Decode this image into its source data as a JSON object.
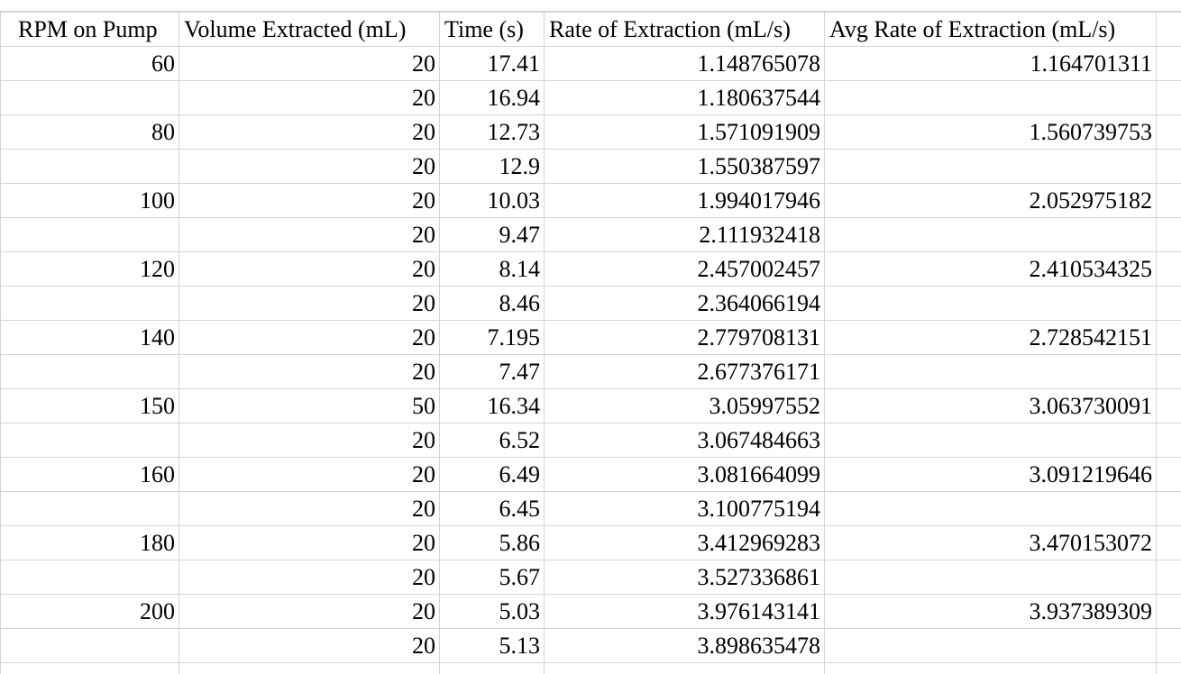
{
  "sheet": {
    "headers": [
      "RPM on Pump",
      "Volume Extracted (mL)",
      "Time (s)",
      "Rate of Extraction (mL/s)",
      "Avg Rate of Extraction (mL/s)",
      ""
    ],
    "rows": [
      [
        "60",
        "20",
        "17.41",
        "1.148765078",
        "1.164701311",
        ""
      ],
      [
        "",
        "20",
        "16.94",
        "1.180637544",
        "",
        ""
      ],
      [
        "80",
        "20",
        "12.73",
        "1.571091909",
        "1.560739753",
        ""
      ],
      [
        "",
        "20",
        "12.9",
        "1.550387597",
        "",
        ""
      ],
      [
        "100",
        "20",
        "10.03",
        "1.994017946",
        "2.052975182",
        ""
      ],
      [
        "",
        "20",
        "9.47",
        "2.111932418",
        "",
        ""
      ],
      [
        "120",
        "20",
        "8.14",
        "2.457002457",
        "2.410534325",
        ""
      ],
      [
        "",
        "20",
        "8.46",
        "2.364066194",
        "",
        ""
      ],
      [
        "140",
        "20",
        "7.195",
        "2.779708131",
        "2.728542151",
        ""
      ],
      [
        "",
        "20",
        "7.47",
        "2.677376171",
        "",
        ""
      ],
      [
        "150",
        "50",
        "16.34",
        "3.05997552",
        "3.063730091",
        ""
      ],
      [
        "",
        "20",
        "6.52",
        "3.067484663",
        "",
        ""
      ],
      [
        "160",
        "20",
        "6.49",
        "3.081664099",
        "3.091219646",
        ""
      ],
      [
        "",
        "20",
        "6.45",
        "3.100775194",
        "",
        ""
      ],
      [
        "180",
        "20",
        "5.86",
        "3.412969283",
        "3.470153072",
        ""
      ],
      [
        "",
        "20",
        "5.67",
        "3.527336861",
        "",
        ""
      ],
      [
        "200",
        "20",
        "5.03",
        "3.976143141",
        "3.937389309",
        ""
      ],
      [
        "",
        "20",
        "5.13",
        "3.898635478",
        "",
        ""
      ],
      [
        "",
        "",
        "",
        "",
        "",
        ""
      ]
    ]
  },
  "colors": {
    "gridline": "#d4d4d4",
    "text": "#000000",
    "background": "#ffffff"
  }
}
